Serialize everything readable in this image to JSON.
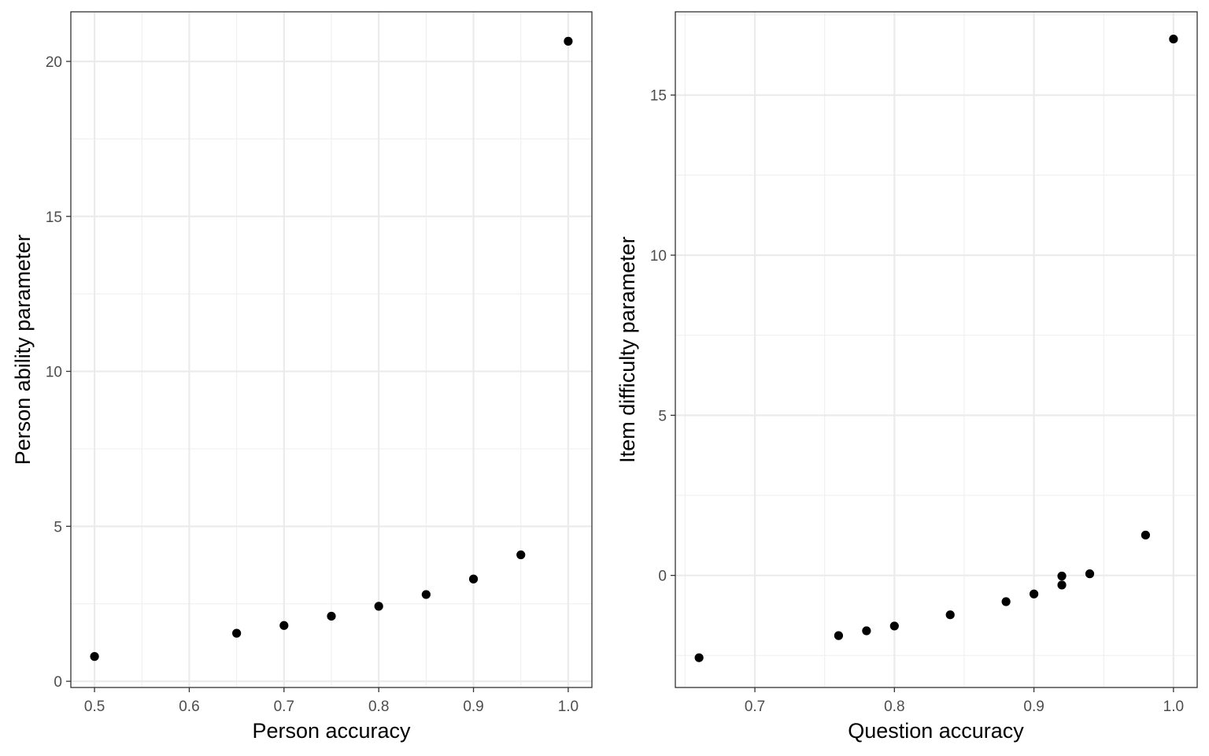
{
  "chart_data": [
    {
      "type": "scatter",
      "xlabel": "Person accuracy",
      "ylabel": "Person ability parameter",
      "xlim": [
        0.475,
        1.025
      ],
      "ylim": [
        -0.2,
        21.6
      ],
      "x_ticks": [
        0.5,
        0.6,
        0.7,
        0.8,
        0.9,
        1.0
      ],
      "x_tick_labels": [
        "0.5",
        "0.6",
        "0.7",
        "0.8",
        "0.9",
        "1.0"
      ],
      "y_ticks": [
        0,
        5,
        10,
        15,
        20
      ],
      "y_tick_labels": [
        "0",
        "5",
        "10",
        "15",
        "20"
      ],
      "grid": true,
      "series": [
        {
          "x": [
            0.5,
            0.65,
            0.7,
            0.75,
            0.8,
            0.85,
            0.9,
            0.95,
            1.0
          ],
          "y": [
            0.8,
            1.55,
            1.8,
            2.1,
            2.42,
            2.8,
            3.3,
            4.08,
            20.65
          ]
        }
      ]
    },
    {
      "type": "scatter",
      "xlabel": "Question accuracy",
      "ylabel": "Item difficulty parameter",
      "xlim": [
        0.643,
        1.017
      ],
      "ylim": [
        -3.5,
        17.6
      ],
      "x_ticks": [
        0.7,
        0.8,
        0.9,
        1.0
      ],
      "x_tick_labels": [
        "0.7",
        "0.8",
        "0.9",
        "1.0"
      ],
      "y_ticks": [
        0,
        5,
        10,
        15
      ],
      "y_tick_labels": [
        "0",
        "5",
        "10",
        "15"
      ],
      "grid": true,
      "series": [
        {
          "x": [
            0.66,
            0.76,
            0.78,
            0.8,
            0.84,
            0.88,
            0.9,
            0.92,
            0.92,
            0.94,
            0.98,
            1.0
          ],
          "y": [
            -2.57,
            -1.88,
            -1.73,
            -1.58,
            -1.23,
            -0.82,
            -0.58,
            -0.3,
            -0.02,
            0.05,
            1.26,
            16.75
          ]
        }
      ]
    }
  ]
}
